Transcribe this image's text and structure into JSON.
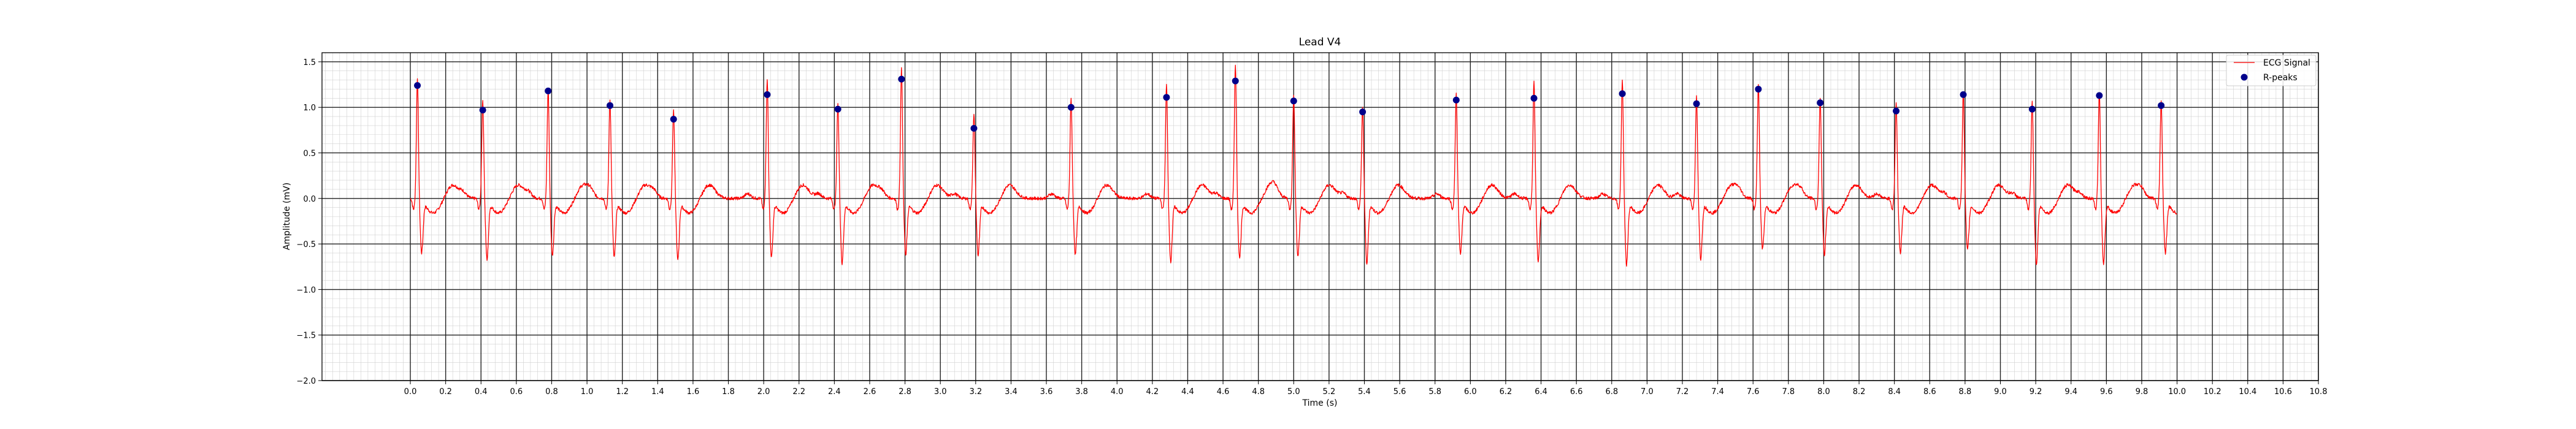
{
  "chart_data": {
    "type": "line",
    "title": "Lead V4",
    "xlabel": "Time (s)",
    "ylabel": "Amplitude (mV)",
    "xlim": [
      -0.5,
      10.8
    ],
    "ylim": [
      -2.0,
      1.6
    ],
    "x_ticks": [
      0.0,
      0.2,
      0.4,
      0.6,
      0.8,
      1.0,
      1.2,
      1.4,
      1.6,
      1.8,
      2.0,
      2.2,
      2.4,
      2.6,
      2.8,
      3.0,
      3.2,
      3.4,
      3.6,
      3.8,
      4.0,
      4.2,
      4.4,
      4.6,
      4.8,
      5.0,
      5.2,
      5.4,
      5.6,
      5.8,
      6.0,
      6.2,
      6.4,
      6.6,
      6.8,
      7.0,
      7.2,
      7.4,
      7.6,
      7.8,
      8.0,
      8.2,
      8.4,
      8.6,
      8.8,
      9.0,
      9.2,
      9.4,
      9.6,
      9.8,
      10.0,
      10.2,
      10.4,
      10.6,
      10.8
    ],
    "x_tick_labels": [
      "0.0",
      "0.2",
      "0.4",
      "0.6",
      "0.8",
      "1.0",
      "1.2",
      "1.4",
      "1.6",
      "1.8",
      "2.0",
      "2.2",
      "2.4",
      "2.6",
      "2.8",
      "3.0",
      "3.2",
      "3.4",
      "3.6",
      "3.8",
      "4.0",
      "4.2",
      "4.4",
      "4.6",
      "4.8",
      "5.0",
      "5.2",
      "5.4",
      "5.6",
      "5.8",
      "6.0",
      "6.2",
      "6.4",
      "6.6",
      "6.8",
      "7.0",
      "7.2",
      "7.4",
      "7.6",
      "7.8",
      "8.0",
      "8.2",
      "8.4",
      "8.6",
      "8.8",
      "9.0",
      "9.2",
      "9.4",
      "9.6",
      "9.8",
      "10.0",
      "10.2",
      "10.4",
      "10.6",
      "10.8"
    ],
    "y_ticks": [
      -2.0,
      -1.5,
      -1.0,
      -0.5,
      0.0,
      0.5,
      1.0,
      1.5
    ],
    "y_tick_labels": [
      "−2.0",
      "−1.5",
      "−1.0",
      "−0.5",
      "0.0",
      "0.5",
      "1.0",
      "1.5"
    ],
    "grid": {
      "major": true,
      "minor": true,
      "major_vertical_lines_s": [
        0.0,
        0.2,
        0.4,
        0.6,
        0.8,
        1.0,
        1.2,
        1.4,
        1.6,
        1.8,
        2.0,
        2.2,
        2.4,
        2.6,
        2.8,
        3.0,
        3.2,
        3.4,
        3.6,
        3.8,
        4.0,
        4.2,
        4.4,
        4.6,
        4.8,
        5.0,
        5.2,
        5.4,
        5.6,
        5.8,
        6.0,
        6.2,
        6.4,
        6.6,
        6.8,
        7.0,
        7.2,
        7.4,
        7.6,
        7.8,
        8.0,
        8.2,
        8.4,
        8.6,
        8.8,
        9.0,
        9.2,
        9.4,
        9.6,
        9.8,
        10.0,
        10.2,
        10.4,
        10.6,
        10.8
      ],
      "major_horizontal_lines_mv": [
        -2.0,
        -1.5,
        -1.0,
        -0.5,
        0.0,
        0.5,
        1.0,
        1.5
      ],
      "minor_step_x_s": 0.04,
      "minor_step_y_mv": 0.1
    },
    "legend": {
      "position": "top-right",
      "entries": [
        "ECG Signal",
        "R-peaks"
      ]
    },
    "series": [
      {
        "name": "ECG Signal",
        "kind": "line",
        "color": "#ff0000",
        "x_range": [
          0.0,
          10.0
        ],
        "beat_times": [
          0.04,
          0.41,
          0.78,
          1.13,
          1.49,
          2.02,
          2.42,
          2.78,
          3.19,
          3.74,
          4.28,
          4.67,
          5.0,
          5.39,
          5.92,
          6.36,
          6.86,
          7.28,
          7.63,
          7.98,
          8.41,
          8.79,
          9.18,
          9.56,
          9.91
        ],
        "r_amplitudes": [
          1.33,
          1.08,
          1.2,
          1.08,
          0.97,
          1.32,
          1.05,
          1.43,
          0.93,
          1.1,
          1.25,
          1.47,
          1.13,
          1.0,
          1.15,
          1.28,
          1.3,
          1.12,
          1.25,
          1.12,
          1.05,
          1.17,
          1.07,
          1.18,
          1.08
        ],
        "s_amplitudes": [
          -0.6,
          -0.67,
          -0.63,
          -0.65,
          -0.68,
          -0.65,
          -0.72,
          -0.62,
          -0.63,
          -0.62,
          -0.7,
          -0.66,
          -0.64,
          -0.72,
          -0.62,
          -0.7,
          -0.73,
          -0.67,
          -0.56,
          -0.62,
          -0.6,
          -0.57,
          -0.73,
          -0.72,
          -0.6
        ],
        "t_wave_amplitude": 0.15,
        "p_wave_amplitude": 0.05,
        "baseline": 0.0
      },
      {
        "name": "R-peaks",
        "kind": "scatter",
        "color": "#00008b",
        "x": [
          0.04,
          0.41,
          0.78,
          1.13,
          1.49,
          2.02,
          2.42,
          2.78,
          3.19,
          3.74,
          4.28,
          4.67,
          5.0,
          5.39,
          5.92,
          6.36,
          6.86,
          7.28,
          7.63,
          7.98,
          8.41,
          8.79,
          9.18,
          9.56,
          9.91
        ],
        "y": [
          1.24,
          0.97,
          1.18,
          1.02,
          0.87,
          1.14,
          0.98,
          1.31,
          0.77,
          1.0,
          1.11,
          1.29,
          1.07,
          0.95,
          1.08,
          1.1,
          1.15,
          1.04,
          1.2,
          1.05,
          0.96,
          1.14,
          0.98,
          1.13,
          1.02
        ]
      }
    ]
  }
}
